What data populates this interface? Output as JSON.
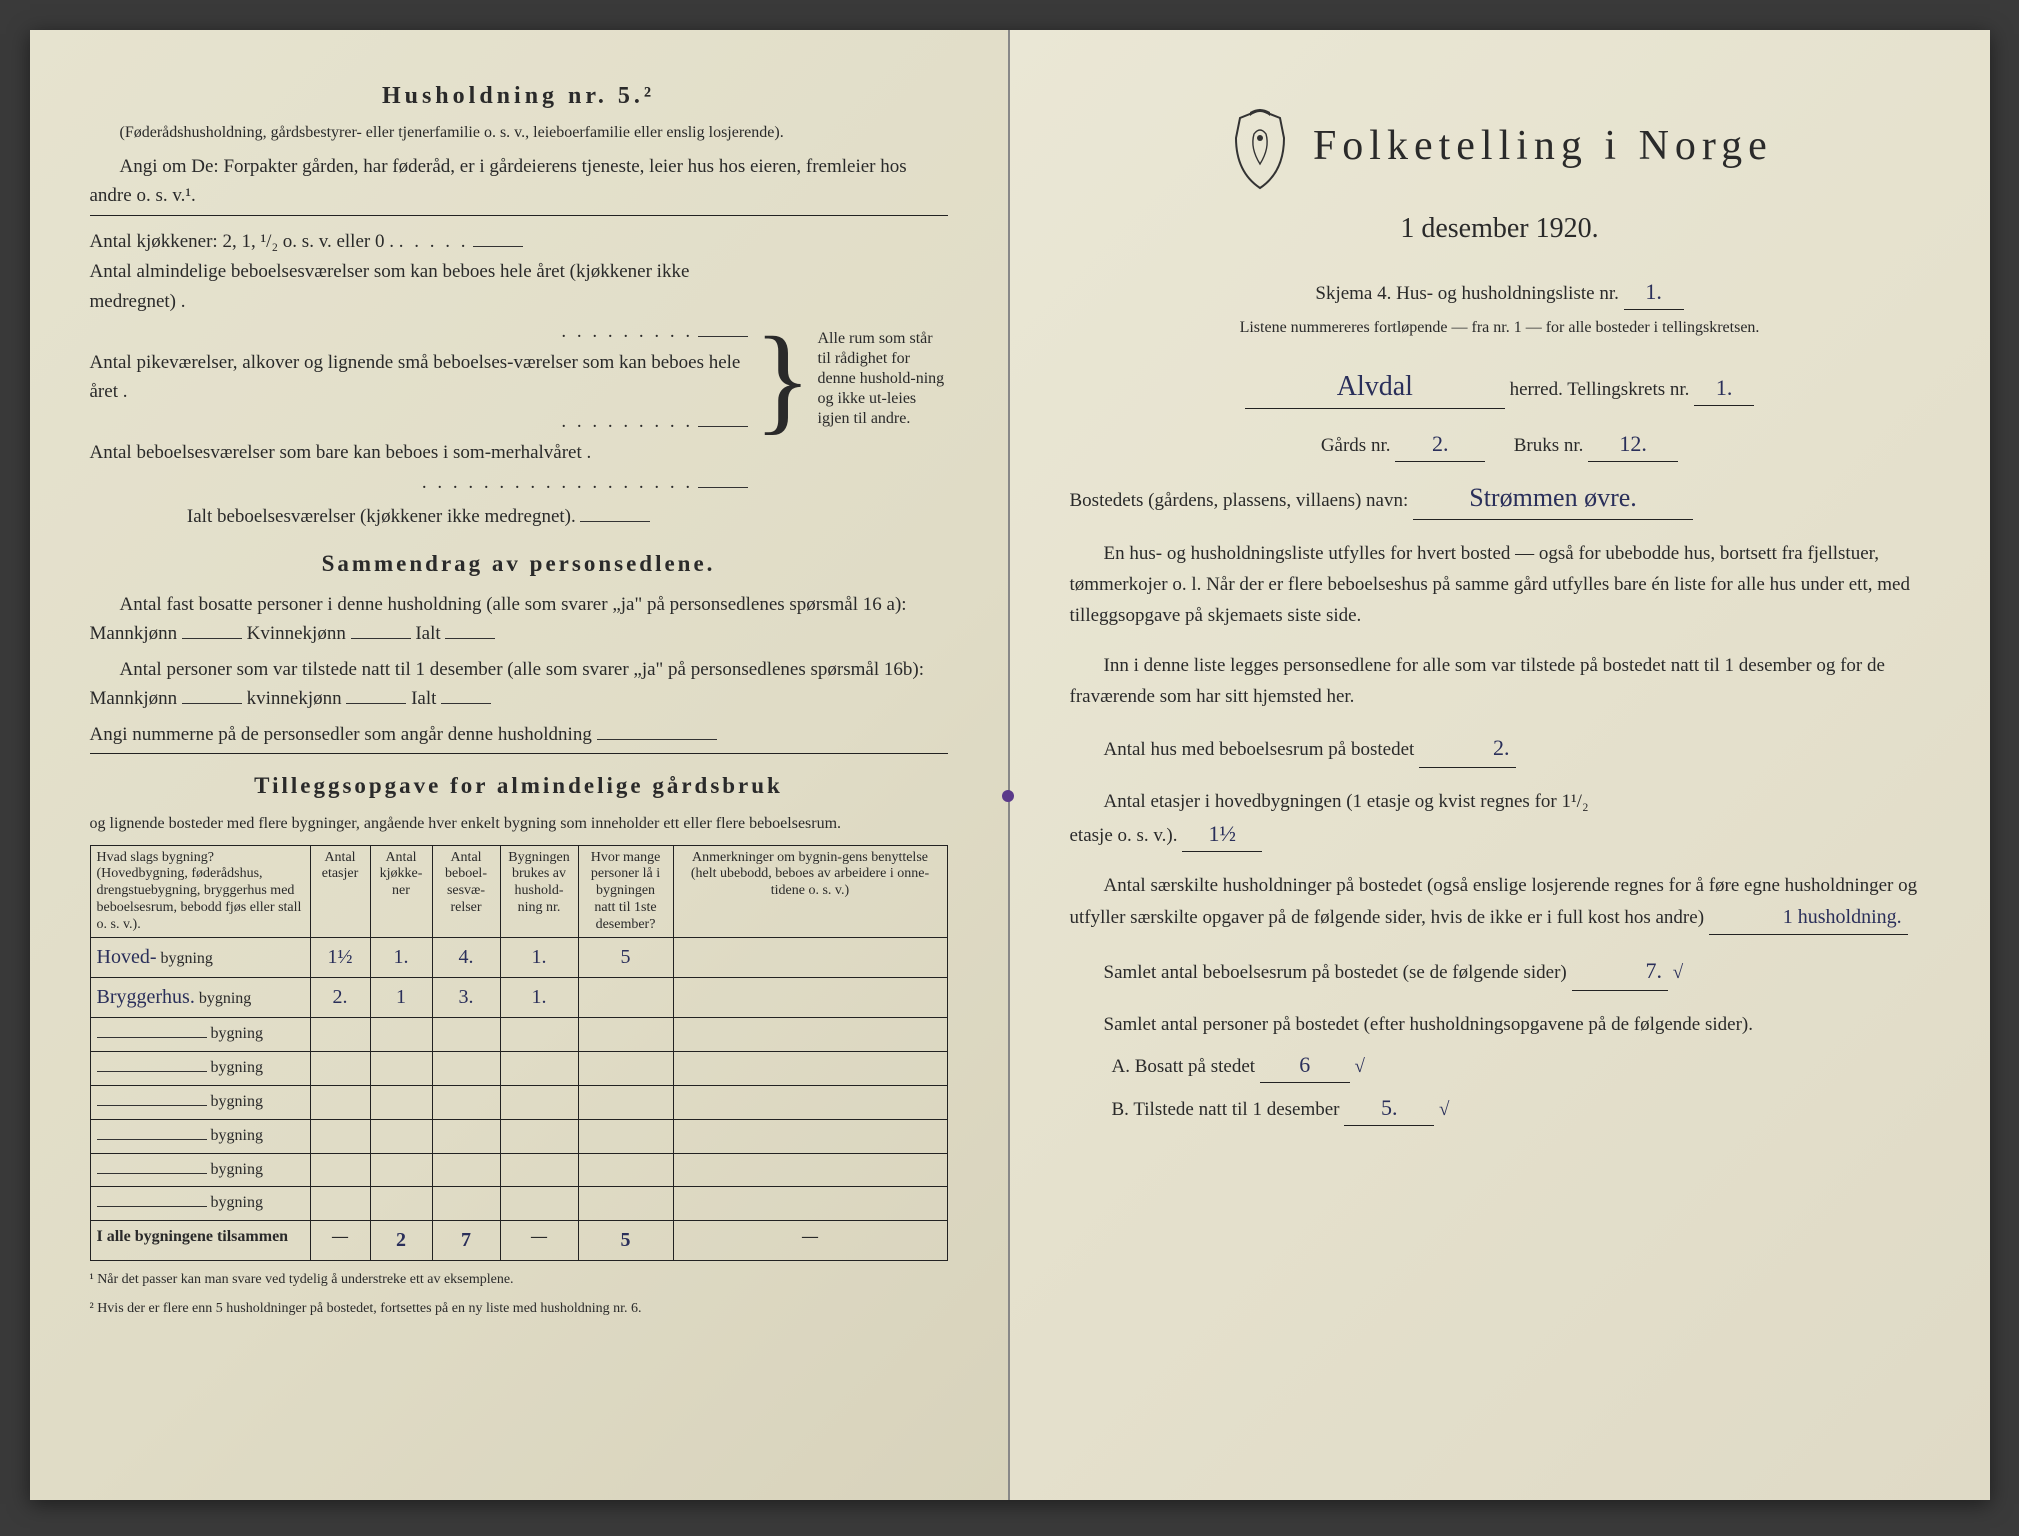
{
  "left": {
    "heading": "Husholdning nr. 5.²",
    "sub1": "(Føderådshusholdning, gårdsbestyrer- eller tjenerfamilie o. s. v., leieboerfamilie eller enslig losjerende).",
    "sub2": "Angi om De: Forpakter gården, har føderåd, er i gårdeierens tjeneste, leier hus hos eieren, fremleier hos andre o. s. v.¹.",
    "kitchens_label": "Antal kjøkkener: 2, 1, ¹/₂ o. s. v. eller 0 .",
    "rooms1": "Antal almindelige beboelsesværelser som kan beboes hele året (kjøkkener ikke medregnet) .",
    "rooms2": "Antal pikeværelser, alkover og lignende små beboelses-værelser som kan beboes hele året .",
    "rooms3": "Antal beboelsesværelser som bare kan beboes i som-merhalvåret .",
    "ialt": "Ialt beboelsesværelser (kjøkkener ikke medregnet).",
    "brace_text": "Alle rum som står til rådighet for denne hushold-ning og ikke ut-leies igjen til andre.",
    "summary_title": "Sammendrag av personsedlene.",
    "sum_a": "Antal fast bosatte personer i denne husholdning (alle som svarer „ja\" på personsedlenes spørsmål 16 a): Mannkjønn",
    "kvinnek": "Kvinnekjønn",
    "ialt_lbl": "Ialt",
    "sum_b": "Antal personer som var tilstede natt til 1 desember (alle som svarer „ja\" på personsedlenes spørsmål 16b): Mannkjønn",
    "kvinnek2": "kvinnekjønn",
    "angi_num": "Angi nummerne på de personsedler som angår denne husholdning",
    "tillegg_title": "Tilleggsopgave for almindelige gårdsbruk",
    "tillegg_sub": "og lignende bosteder med flere bygninger, angående hver enkelt bygning som inneholder ett eller flere beboelsesrum.",
    "cols": {
      "c1": "Hvad slags bygning?\n(Hovedbygning, føderådshus, drengstuebygning, bryggerhus med beboelsesrum, bebodd fjøs eller stall o. s. v.).",
      "c2": "Antal etasjer",
      "c3": "Antal kjøkke-ner",
      "c4": "Antal beboel-sesvæ-relser",
      "c5": "Bygningen brukes av hushold-ning nr.",
      "c6": "Hvor mange personer lå i bygningen natt til 1ste desember?",
      "c7": "Anmerkninger om bygnin-gens benyttelse (helt ubebodd, beboes av arbeidere i onne-tidene o. s. v.)"
    },
    "rows": [
      {
        "name": "Hoved-",
        "et": "1½",
        "kj": "1.",
        "beb": "4.",
        "hh": "1.",
        "pers": "5",
        "anm": ""
      },
      {
        "name": "Bryggerhus.",
        "et": "2.",
        "kj": "1",
        "beb": "3.",
        "hh": "1.",
        "pers": "",
        "anm": ""
      }
    ],
    "totals_label": "I alle bygningene tilsammen",
    "totals": {
      "et": "—",
      "kj": "2",
      "beb": "7",
      "hh": "—",
      "pers": "5",
      "anm": "—"
    },
    "fn1": "¹  Når det passer kan man svare ved tydelig å understreke ett av eksemplene.",
    "fn2": "²  Hvis der er flere enn 5 husholdninger på bostedet, fortsettes på en ny liste med husholdning nr. 6.",
    "bygning_word": "bygning"
  },
  "right": {
    "title": "Folketelling i Norge",
    "date": "1 desember 1920.",
    "skjema_pre": "Skjema 4.  Hus- og husholdningsliste nr.",
    "skjema_nr": "1.",
    "listene": "Listene nummereres fortløpende — fra nr. 1 — for alle bosteder i tellingskretsen.",
    "herred_name": "Alvdal",
    "herred_lbl": "herred.   Tellingskrets nr.",
    "tell_nr": "1.",
    "gard_lbl": "Gårds nr.",
    "gard_nr": "2.",
    "bruks_lbl": "Bruks nr.",
    "bruks_nr": "12.",
    "bosted_lbl": "Bostedets (gårdens, plassens, villaens) navn:",
    "bosted_name": "Strømmen øvre.",
    "para1": "En hus- og husholdningsliste utfylles for hvert bosted — også for ubebodde hus, bortsett fra fjellstuer, tømmerkojer o. l.  Når der er flere beboelseshus på samme gård utfylles bare én liste for alle hus under ett, med tilleggsopgave på skjemaets siste side.",
    "para2": "Inn i denne liste legges personsedlene for alle som var tilstede på bostedet natt til 1 desember og for de fraværende som har sitt hjemsted her.",
    "q1_lbl": "Antal hus med beboelsesrum på bostedet",
    "q1_val": "2.",
    "q2a": "Antal etasjer i hovedbygningen (1 etasje og kvist regnes for 1¹/₂",
    "q2b": "etasje o. s. v.).",
    "q2_val": "1½",
    "q3": "Antal særskilte husholdninger på bostedet (også enslige losjerende regnes for å føre egne husholdninger og utfyller særskilte opgaver på de følgende sider, hvis de ikke er i full kost hos andre)",
    "q3_val": "1 husholdning.",
    "q4_lbl": "Samlet antal beboelsesrum på bostedet (se de følgende sider)",
    "q4_val": "7.",
    "q5": "Samlet antal personer på bostedet (efter husholdningsopgavene på de følgende sider).",
    "qa_lbl": "A.  Bosatt på stedet",
    "qa_val": "6",
    "qb_lbl": "B.  Tilstede natt til 1 desember",
    "qb_val": "5.",
    "check": "√"
  },
  "style": {
    "page_bg": "#e5e1cd",
    "ink": "#2a2a2a",
    "hand_ink": "#2a2f5a",
    "rule": "#222222"
  }
}
